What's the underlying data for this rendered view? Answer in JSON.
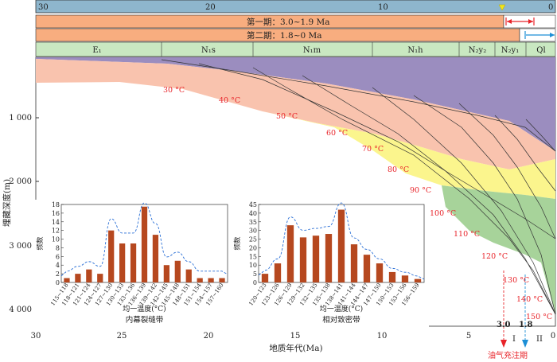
{
  "top_axis": {
    "ticks": [
      "30",
      "20",
      "10",
      "0"
    ]
  },
  "stages": {
    "stage1": "第一期：3.0~1.9 Ma",
    "stage2": "第二期：1.8~0 Ma"
  },
  "formations": [
    "E₁",
    "N₁s",
    "N₁m",
    "N₁h",
    "N₂y₂",
    "N₂y₁",
    "Ql"
  ],
  "left_axis": {
    "title": "埋藏深度(m)",
    "ticks": [
      "1 000",
      "2 000",
      "3 000",
      "4 000"
    ]
  },
  "bottom_axis": {
    "title": "地质年代(Ma)",
    "ticks": [
      "30",
      "25",
      "20",
      "15",
      "10",
      "5",
      "0"
    ]
  },
  "isotherms": [
    "30 °C",
    "40 °C",
    "50 °C",
    "60 °C",
    "70 °C",
    "80 °C",
    "90 °C",
    "100 °C",
    "110 °C",
    "120 °C",
    "130 °C",
    "140 °C",
    "150 °C"
  ],
  "markers": {
    "m30": "3.0",
    "m18": "1.8",
    "roman1": "I",
    "roman2": "II",
    "charge_label": "油气充注期"
  },
  "inset_left": {
    "ylabel": "频数",
    "xlabel": "均一温度(°C)",
    "caption": "内幕裂缝带",
    "yticks": [
      "0",
      "2",
      "4",
      "6",
      "8",
      "10",
      "12",
      "14",
      "16",
      "18"
    ],
    "ymax": 18,
    "categories": [
      "115~118",
      "118~121",
      "121~124",
      "124~127",
      "127~130",
      "130~133",
      "133~136",
      "136~139",
      "139~142",
      "142~145",
      "145~148",
      "148~151",
      "151~154",
      "154~157",
      "157~160"
    ],
    "values": [
      1,
      2,
      3,
      2,
      12,
      9,
      9,
      17.5,
      11,
      4,
      5,
      3,
      1,
      1,
      1
    ]
  },
  "inset_right": {
    "ylabel": "频数",
    "xlabel": "均一温度(°C)",
    "caption": "相对致密带",
    "yticks": [
      "0",
      "5",
      "10",
      "15",
      "20",
      "25",
      "30",
      "35",
      "40",
      "45"
    ],
    "ymax": 45,
    "categories": [
      "120~123",
      "123~126",
      "126~129",
      "129~132",
      "132~135",
      "135~138",
      "138~141",
      "141~144",
      "144~147",
      "147~150",
      "150~153",
      "153~156",
      "156~159"
    ],
    "values": [
      5,
      11,
      33,
      26,
      27,
      28,
      42,
      22,
      16,
      11,
      6,
      4,
      2
    ]
  },
  "colors": {
    "purple": "#9b8dbf",
    "pink": "#f9c3ae",
    "yellow": "#fbf58d",
    "green": "#a7d39a",
    "stage_orange": "#f8ad7f",
    "formation_green": "#c9e8c1",
    "top_blue": "#8eb6cd",
    "bar": "#b6481f",
    "red": "#e8242a",
    "blue": "#1d8fd6"
  }
}
